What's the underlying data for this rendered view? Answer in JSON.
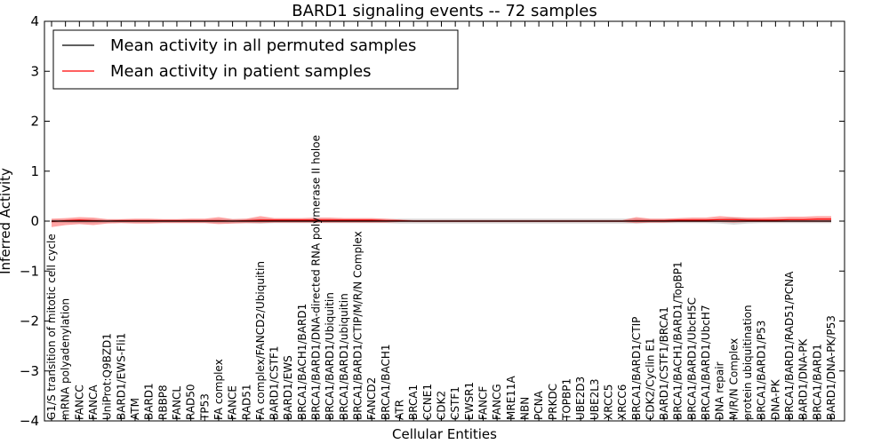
{
  "chart_data": {
    "type": "line",
    "title": "BARD1 signaling events -- 72 samples",
    "xlabel": "Cellular Entities",
    "ylabel": "Inferred Activity",
    "ylim": [
      -4,
      4
    ],
    "yticks": [
      "4",
      "3",
      "2",
      "1",
      "0",
      "−1",
      "−2",
      "−3",
      "−4"
    ],
    "ytick_values": [
      4,
      3,
      2,
      1,
      0,
      -1,
      -2,
      -3,
      -4
    ],
    "legend": {
      "position": "top-left",
      "entries": [
        {
          "label": "Mean activity in all permuted samples",
          "color": "#000000"
        },
        {
          "label": "Mean activity in patient samples",
          "color": "#ff0000"
        }
      ]
    },
    "categories": [
      "G1/S transition of mitotic cell cycle",
      "mRNA polyadenylation",
      "FANCC",
      "FANCA",
      "UniProt:Q9BZD1",
      "BARD1/EWS-Fli1",
      "ATM",
      "BARD1",
      "RBBP8",
      "FANCL",
      "RAD50",
      "TP53",
      "FA complex",
      "FANCE",
      "RAD51",
      "FA complex/FANCD2/Ubiquitin",
      "BARD1/CSTF1",
      "BARD1/EWS",
      "BRCA1/BACH1/BARD1",
      "BRCA1/BARD1/DNA-directed RNA polymerase II holoe",
      "BRCA1/BARD1/Ubiquitin",
      "BRCA1/BARD1/ubiquitin",
      "BRCA1/BARD1/CTIP/M/R/N Complex",
      "FANCD2",
      "BRCA1/BACH1",
      "ATR",
      "BRCA1",
      "CCNE1",
      "CDK2",
      "CSTF1",
      "EWSR1",
      "FANCF",
      "FANCG",
      "MRE11A",
      "NBN",
      "PCNA",
      "PRKDC",
      "TOPBP1",
      "UBE2D3",
      "UBE2L3",
      "XRCC5",
      "XRCC6",
      "BRCA1/BARD1/CTIP",
      "CDK2/Cyclin E1",
      "BARD1/CSTF1/BRCA1",
      "BRCA1/BACH1/BARD1/TopBP1",
      "BRCA1/BARD1/UbcH5C",
      "BRCA1/BARD1/UbcH7",
      "DNA repair",
      "M/R/N Complex",
      "protein ubiquitination",
      "BRCA1/BARD1/P53",
      "DNA-PK",
      "BRCA1/BARD1/RAD51/PCNA",
      "BARD1/DNA-PK",
      "BRCA1/BARD1",
      "BARD1/DNA-PK/P53"
    ],
    "series": [
      {
        "name": "Mean activity in all permuted samples",
        "color": "#000000",
        "values": [
          0,
          0,
          0,
          0,
          0,
          0,
          0,
          0,
          0,
          0,
          0,
          0,
          0,
          0,
          0,
          0,
          0,
          0,
          0,
          0,
          0,
          0,
          0,
          0,
          0,
          0,
          0,
          0,
          0,
          0,
          0,
          0,
          0,
          0,
          0,
          0,
          0,
          0,
          0,
          0,
          0,
          0,
          0,
          0,
          0,
          0,
          0,
          0,
          0,
          0,
          0,
          0,
          0,
          0,
          0,
          0,
          0
        ],
        "band_lower": [
          -0.03,
          -0.03,
          -0.04,
          -0.04,
          -0.03,
          -0.03,
          -0.03,
          -0.03,
          -0.03,
          -0.03,
          -0.03,
          -0.03,
          -0.04,
          -0.04,
          -0.04,
          -0.05,
          -0.04,
          -0.04,
          -0.04,
          -0.04,
          -0.04,
          -0.04,
          -0.04,
          -0.04,
          -0.04,
          -0.05,
          -0.05,
          -0.05,
          -0.05,
          -0.05,
          -0.05,
          -0.05,
          -0.05,
          -0.05,
          -0.05,
          -0.05,
          -0.05,
          -0.05,
          -0.05,
          -0.05,
          -0.05,
          -0.05,
          -0.05,
          -0.04,
          -0.04,
          -0.04,
          -0.04,
          -0.04,
          -0.05,
          -0.07,
          -0.05,
          -0.04,
          -0.04,
          -0.04,
          -0.04,
          -0.04,
          -0.04
        ],
        "band_upper": [
          0.03,
          0.03,
          0.04,
          0.04,
          0.03,
          0.03,
          0.03,
          0.03,
          0.03,
          0.03,
          0.03,
          0.03,
          0.04,
          0.04,
          0.04,
          0.05,
          0.04,
          0.04,
          0.04,
          0.04,
          0.04,
          0.04,
          0.04,
          0.04,
          0.04,
          0.05,
          0.05,
          0.05,
          0.05,
          0.05,
          0.05,
          0.05,
          0.05,
          0.05,
          0.05,
          0.05,
          0.05,
          0.05,
          0.05,
          0.05,
          0.05,
          0.05,
          0.05,
          0.04,
          0.04,
          0.04,
          0.04,
          0.04,
          0.05,
          0.07,
          0.05,
          0.04,
          0.04,
          0.04,
          0.04,
          0.04,
          0.04
        ]
      },
      {
        "name": "Mean activity in patient samples",
        "color": "#ff0000",
        "values": [
          -0.01,
          0.01,
          0.02,
          0.01,
          0.0,
          0.01,
          0.01,
          0.01,
          0.01,
          0.01,
          0.01,
          0.01,
          0.01,
          0.0,
          0.01,
          0.02,
          0.02,
          0.02,
          0.02,
          0.02,
          0.02,
          0.02,
          0.02,
          0.02,
          0.01,
          0.01,
          0.0,
          0.0,
          0.0,
          0.0,
          0.0,
          0.0,
          0.0,
          0.0,
          0.0,
          0.0,
          0.0,
          0.0,
          0.0,
          0.0,
          0.0,
          0.0,
          0.01,
          0.01,
          0.01,
          0.02,
          0.02,
          0.02,
          0.03,
          0.03,
          0.02,
          0.02,
          0.02,
          0.03,
          0.03,
          0.04,
          0.04
        ],
        "band_lower": [
          -0.12,
          -0.08,
          -0.06,
          -0.08,
          -0.05,
          -0.04,
          -0.05,
          -0.05,
          -0.04,
          -0.04,
          -0.04,
          -0.04,
          -0.06,
          -0.05,
          -0.04,
          -0.04,
          -0.03,
          -0.03,
          -0.03,
          -0.03,
          -0.03,
          -0.03,
          -0.03,
          -0.03,
          -0.03,
          -0.02,
          -0.02,
          -0.02,
          -0.02,
          -0.02,
          -0.02,
          -0.02,
          -0.02,
          -0.02,
          -0.02,
          -0.02,
          -0.02,
          -0.02,
          -0.02,
          -0.02,
          -0.02,
          -0.02,
          -0.04,
          -0.03,
          -0.03,
          -0.02,
          -0.02,
          -0.02,
          -0.02,
          -0.03,
          -0.02,
          -0.02,
          -0.02,
          -0.02,
          -0.02,
          -0.02,
          -0.02
        ],
        "band_upper": [
          0.05,
          0.06,
          0.08,
          0.07,
          0.04,
          0.04,
          0.05,
          0.05,
          0.04,
          0.04,
          0.05,
          0.05,
          0.08,
          0.04,
          0.05,
          0.1,
          0.06,
          0.06,
          0.06,
          0.07,
          0.07,
          0.06,
          0.06,
          0.06,
          0.05,
          0.03,
          0.02,
          0.02,
          0.02,
          0.02,
          0.02,
          0.02,
          0.02,
          0.02,
          0.02,
          0.02,
          0.02,
          0.02,
          0.02,
          0.02,
          0.02,
          0.02,
          0.08,
          0.05,
          0.05,
          0.06,
          0.07,
          0.07,
          0.1,
          0.08,
          0.07,
          0.07,
          0.08,
          0.09,
          0.09,
          0.1,
          0.1
        ]
      }
    ]
  }
}
